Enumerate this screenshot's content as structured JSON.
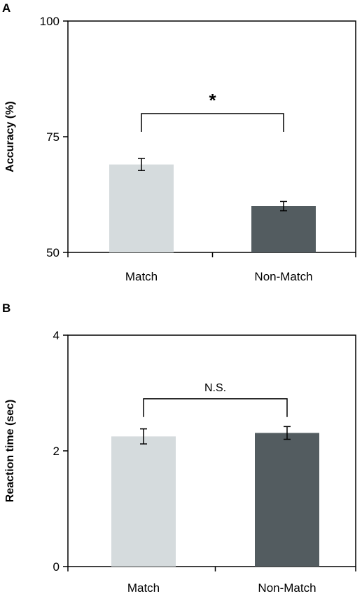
{
  "figure": {
    "background": "#ffffff"
  },
  "chart_data": [
    {
      "type": "bar",
      "panel": "A",
      "categories": [
        "Match",
        "Non-Match"
      ],
      "values": [
        69,
        60
      ],
      "errors": [
        1.3,
        1.0
      ],
      "colors": [
        "#d5dbdd",
        "#535c60"
      ],
      "ylabel": "Accuracy (%)",
      "ylim": [
        50,
        100
      ],
      "yticks": [
        "50",
        "75",
        "100"
      ],
      "grid": false,
      "significance": {
        "label": "*",
        "between": [
          "Match",
          "Non-Match"
        ],
        "y": 80
      }
    },
    {
      "type": "bar",
      "panel": "B",
      "categories": [
        "Match",
        "Non-Match"
      ],
      "values": [
        2.25,
        2.31
      ],
      "errors": [
        0.13,
        0.11
      ],
      "colors": [
        "#d5dbdd",
        "#535c60"
      ],
      "ylabel": "Reaction time (sec)",
      "ylim": [
        0,
        4
      ],
      "yticks": [
        "0",
        "2",
        "4"
      ],
      "grid": false,
      "significance": {
        "label": "N.S.",
        "between": [
          "Match",
          "Non-Match"
        ],
        "y": 2.9
      }
    }
  ]
}
